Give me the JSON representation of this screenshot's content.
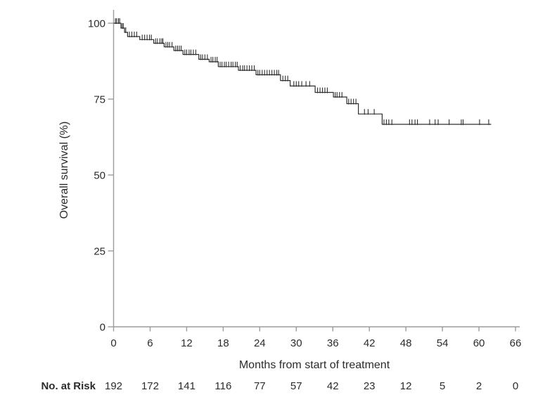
{
  "chart_data": {
    "type": "line",
    "subtype": "kaplan-meier-step-curve",
    "title": "",
    "xlabel": "Months from start of treatment",
    "ylabel": "Overall survival (%)",
    "xlim": [
      0,
      66
    ],
    "ylim": [
      0,
      100
    ],
    "x_ticks": [
      0,
      6,
      12,
      18,
      24,
      30,
      36,
      42,
      48,
      54,
      60,
      66
    ],
    "y_ticks": [
      0,
      25,
      50,
      75,
      100
    ],
    "grid": false,
    "legend": "none",
    "series": [
      {
        "name": "Overall survival",
        "color": "#2e2e2e",
        "end_month": 62.0,
        "steps": [
          [
            0,
            100
          ],
          [
            1.2,
            98.4
          ],
          [
            1.8,
            97.0
          ],
          [
            2.3,
            95.6
          ],
          [
            4.3,
            94.6
          ],
          [
            6.6,
            93.4
          ],
          [
            8.3,
            92.2
          ],
          [
            9.9,
            91.0
          ],
          [
            11.4,
            89.7
          ],
          [
            14.0,
            88.1
          ],
          [
            15.7,
            87.3
          ],
          [
            17.2,
            85.7
          ],
          [
            20.5,
            84.5
          ],
          [
            23.4,
            83.0
          ],
          [
            27.4,
            81.1
          ],
          [
            29.0,
            79.3
          ],
          [
            33.1,
            77.2
          ],
          [
            36.1,
            75.7
          ],
          [
            38.3,
            73.5
          ],
          [
            40.2,
            70.1
          ],
          [
            44.1,
            66.7
          ]
        ],
        "censor_months": [
          0.3,
          0.5,
          0.8,
          1.0,
          1.4,
          1.6,
          2.0,
          2.6,
          3.0,
          3.4,
          3.8,
          4.7,
          5.1,
          5.5,
          5.9,
          6.2,
          6.9,
          7.2,
          7.6,
          7.9,
          8.1,
          8.6,
          8.9,
          9.2,
          9.6,
          10.2,
          10.5,
          10.8,
          11.1,
          11.7,
          12.0,
          12.4,
          12.7,
          13.1,
          13.5,
          14.3,
          14.6,
          15.0,
          15.4,
          16.0,
          16.3,
          16.7,
          17.0,
          17.5,
          17.8,
          18.2,
          18.5,
          18.9,
          19.3,
          19.6,
          20.0,
          20.3,
          20.8,
          21.2,
          21.5,
          21.9,
          22.3,
          22.7,
          23.1,
          23.7,
          24.0,
          24.4,
          24.8,
          25.2,
          25.6,
          26.0,
          26.4,
          26.8,
          27.1,
          27.8,
          28.2,
          28.6,
          29.6,
          30.0,
          30.4,
          30.9,
          31.6,
          32.2,
          33.5,
          33.9,
          34.3,
          34.7,
          35.1,
          36.4,
          36.7,
          37.1,
          37.5,
          38.6,
          39.0,
          39.4,
          39.8,
          41.2,
          41.8,
          42.8,
          44.4,
          44.8,
          45.2,
          45.7,
          48.6,
          49.0,
          49.5,
          49.9,
          51.9,
          52.8,
          53.3,
          55.1,
          57.1,
          57.4,
          60.1,
          61.6
        ]
      }
    ],
    "risk_table": {
      "label": "No. at Risk",
      "times": [
        0,
        6,
        12,
        18,
        24,
        30,
        36,
        42,
        48,
        54,
        60,
        66
      ],
      "counts": [
        192,
        172,
        141,
        116,
        77,
        57,
        42,
        23,
        12,
        5,
        2,
        0
      ]
    },
    "colors": {
      "axis": "#9c9c9c",
      "curve": "#2e2e2e",
      "text": "#2b2b2b",
      "background": "#ffffff"
    }
  }
}
